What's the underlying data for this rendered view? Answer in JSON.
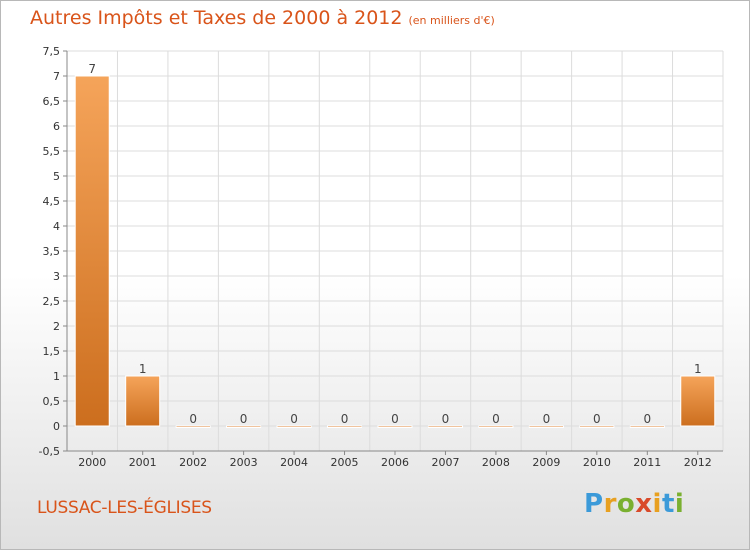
{
  "title": "Autres Impôts et Taxes de 2000 à 2012",
  "unit_label": "(en milliers d'€)",
  "commune": "LUSSAC-LES-ÉGLISES",
  "logo": {
    "text": "Proxiti",
    "colors": [
      "#3b9ad9",
      "#e8a020",
      "#7ab030",
      "#d94a2a",
      "#e8a020",
      "#3b9ad9",
      "#7ab030"
    ]
  },
  "colors": {
    "title": "#d9541a",
    "bar_light": "#f5a45a",
    "bar_dark": "#cc6e1e",
    "grid": "#dcdcdc",
    "axis_text": "#333333"
  },
  "chart_data": {
    "type": "bar",
    "categories": [
      "2000",
      "2001",
      "2002",
      "2003",
      "2004",
      "2005",
      "2006",
      "2007",
      "2008",
      "2009",
      "2010",
      "2011",
      "2012"
    ],
    "values": [
      7,
      1,
      0,
      0,
      0,
      0,
      0,
      0,
      0,
      0,
      0,
      0,
      1
    ],
    "data_labels": [
      "7",
      "1",
      "0",
      "0",
      "0",
      "0",
      "0",
      "0",
      "0",
      "0",
      "0",
      "0",
      "1"
    ],
    "ylim": [
      -0.5,
      7.5
    ],
    "yticks": [
      "-0,5",
      "0",
      "0,5",
      "1",
      "1,5",
      "2",
      "2,5",
      "3",
      "3,5",
      "4",
      "4,5",
      "5",
      "5,5",
      "6",
      "6,5",
      "7",
      "7,5"
    ],
    "ytick_values": [
      -0.5,
      0,
      0.5,
      1,
      1.5,
      2,
      2.5,
      3,
      3.5,
      4,
      4.5,
      5,
      5.5,
      6,
      6.5,
      7,
      7.5
    ],
    "grid": true
  }
}
